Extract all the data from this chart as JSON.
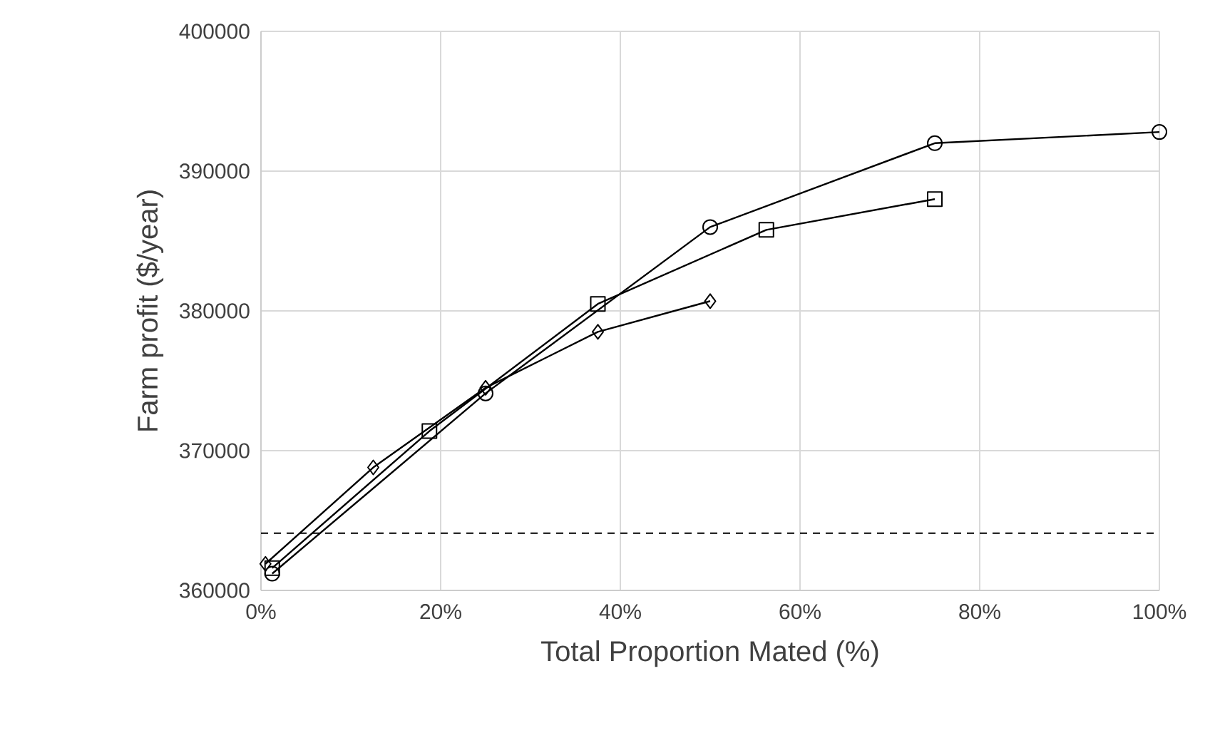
{
  "chart_data": {
    "type": "line",
    "xlabel": "Total Proportion Mated (%)",
    "ylabel": "Farm profit ($/year)",
    "xlim": [
      0,
      100
    ],
    "ylim": [
      360000,
      400000
    ],
    "xticks": [
      {
        "value": 0,
        "label": "0%"
      },
      {
        "value": 20,
        "label": "20%"
      },
      {
        "value": 40,
        "label": "40%"
      },
      {
        "value": 60,
        "label": "60%"
      },
      {
        "value": 80,
        "label": "80%"
      },
      {
        "value": 100,
        "label": "100%"
      }
    ],
    "yticks": [
      360000,
      370000,
      380000,
      390000,
      400000
    ],
    "grid": true,
    "ref_lines": [
      {
        "axis": "y",
        "value": 364100,
        "color": "#000000",
        "line_style": "dashed"
      }
    ],
    "series": [
      {
        "color": "#000000",
        "marker": "circle",
        "x": [
          1.25,
          25,
          50,
          75,
          100
        ],
        "values": [
          361200,
          374100,
          386000,
          392000,
          392800
        ]
      },
      {
        "color": "#000000",
        "marker": "square",
        "x": [
          1.25,
          18.75,
          37.5,
          56.25,
          75
        ],
        "values": [
          361600,
          371400,
          380500,
          385800,
          388000
        ]
      },
      {
        "color": "#000000",
        "marker": "diamond",
        "x": [
          0.5,
          12.5,
          25,
          37.5,
          50
        ],
        "values": [
          361900,
          368800,
          374500,
          378500,
          380700
        ]
      }
    ]
  }
}
